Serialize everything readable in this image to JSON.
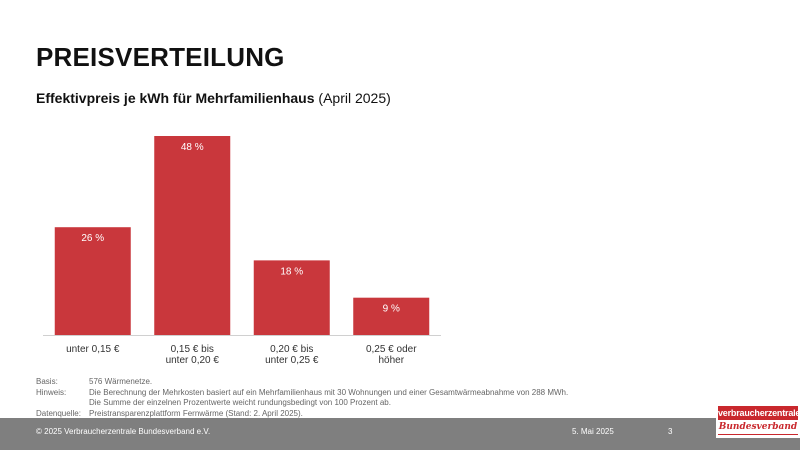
{
  "slide": {
    "title": "PREISVERTEILUNG",
    "subtitle_bold": "Effektivpreis je kWh für Mehrfamilienhaus",
    "subtitle_rest": " (April 2025)"
  },
  "chart_data": {
    "type": "bar",
    "title": "",
    "xlabel": "",
    "ylabel": "",
    "categories": [
      [
        "unter 0,15 €"
      ],
      [
        "0,15 € bis",
        "unter 0,20 €"
      ],
      [
        "0,20 € bis",
        "unter 0,25 €"
      ],
      [
        "0,25 € oder",
        "höher"
      ]
    ],
    "values": [
      26,
      48,
      18,
      9
    ],
    "value_labels": [
      "26 %",
      "48 %",
      "18 %",
      "9 %"
    ],
    "unit": "%",
    "ylim": [
      0,
      48
    ],
    "grid": false,
    "legend": "none",
    "bar_color": "#c9373c"
  },
  "notes": [
    {
      "label": "Basis:",
      "text": "576 Wärmenetze."
    },
    {
      "label": "Hinweis:",
      "text": "Die Berechnung der Mehrkosten basiert auf ein Mehrfamilienhaus mit 30 Wohnungen und einer Gesamtwärmeabnahme von 288 MWh.\nDie Summe der einzelnen Prozentwerte weicht rundungsbedingt von 100 Prozent ab."
    },
    {
      "label": "Datenquelle:",
      "text": "Preistransparenzplattform Fernwärme (Stand: 2. April 2025)."
    }
  ],
  "footer": {
    "copyright": "© 2025 Verbraucherzentrale Bundesverband e.V.",
    "date": "5. Mai 2025",
    "page": "3"
  },
  "logo": {
    "top": "verbraucherzentrale",
    "bottom": "Bundesverband"
  }
}
